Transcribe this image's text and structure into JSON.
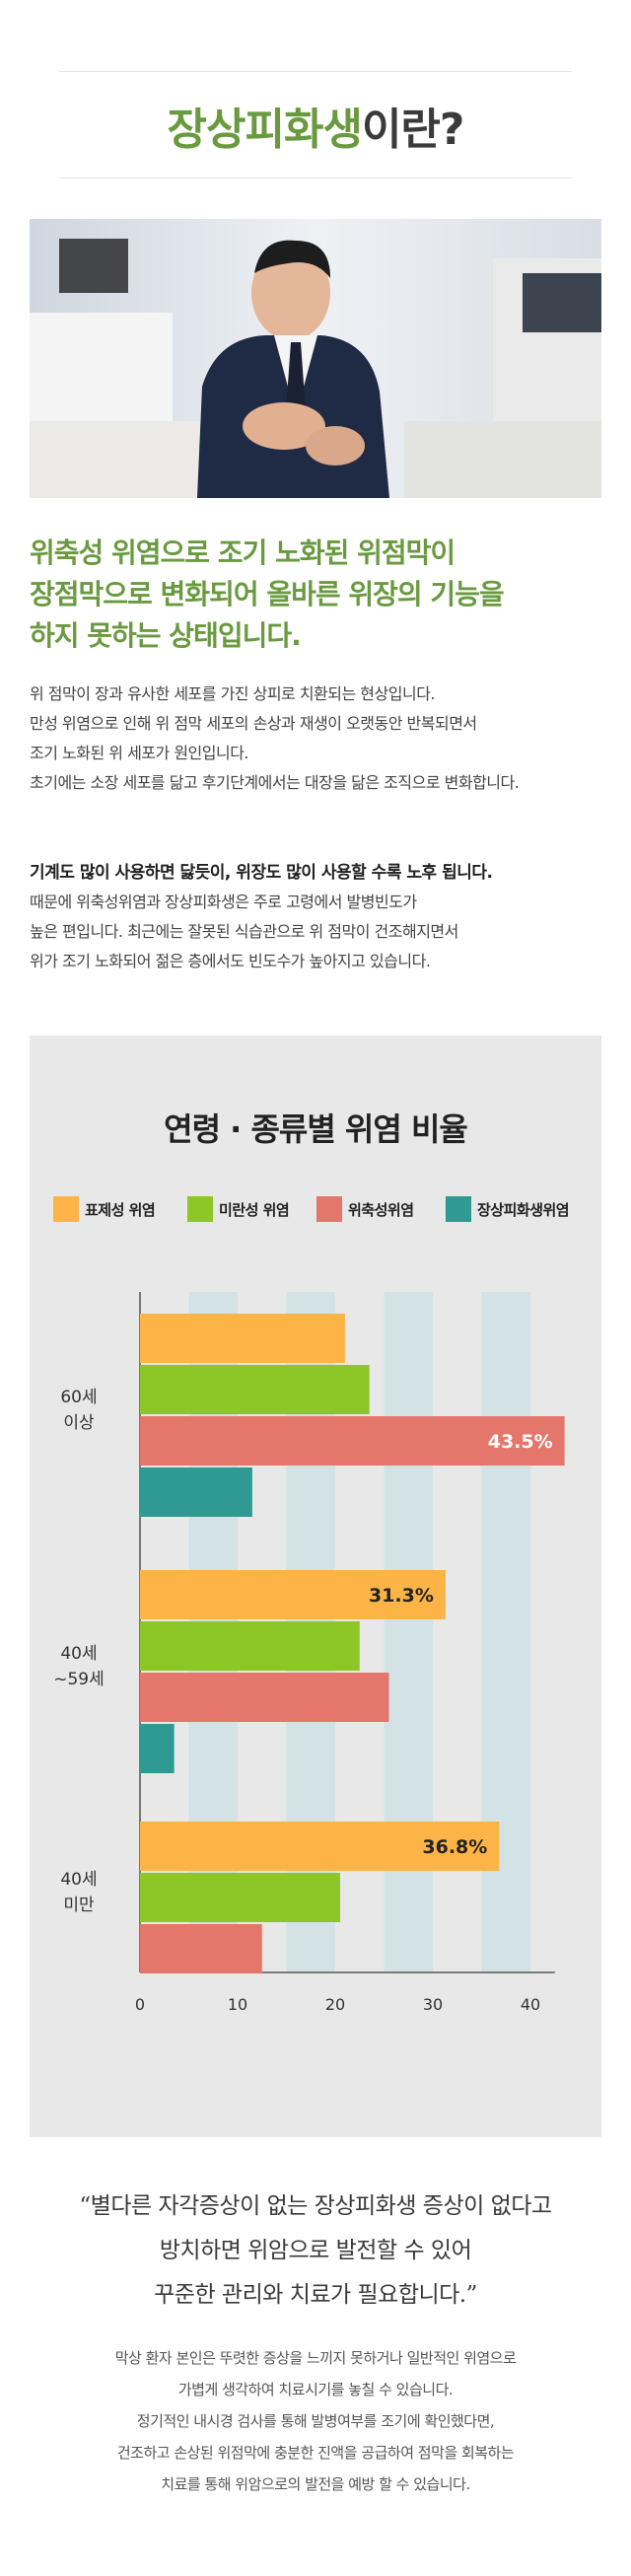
{
  "title": {
    "part1": "장상피화생",
    "part2": "이란?"
  },
  "headline": [
    "위축성 위염으로 조기 노화된 위점막이",
    "장점막으로 변화되어 올바른 위장의 기능을",
    "하지 못하는 상태입니다."
  ],
  "para1": [
    "위 점막이 장과 유사한 세포를 가진 상피로 치환되는 현상입니다.",
    "만성 위염으로 인해 위 점막 세포의 손상과 재생이 오랫동안 반복되면서",
    "조기 노화된 위 세포가 원인입니다.",
    "초기에는 소장 세포를 닮고 후기단계에서는 대장을 닮은 조직으로 변화합니다."
  ],
  "para2": {
    "strong": "기계도 많이 사용하면 닳듯이, 위장도 많이 사용할 수록 노후 됩니다.",
    "lines": [
      "때문에 위축성위염과 장상피화생은 주로 고령에서 발병빈도가",
      "높은 편입니다.  최근에는 잘못된 식습관으로 위 점막이 건조해지면서",
      "위가 조기 노화되어 젊은 층에서도 빈도수가 높아지고 있습니다."
    ]
  },
  "colors": {
    "accent": "#6a9a3f",
    "panel_bg": "#e8e8e8",
    "stripe": "#d3e2e4"
  },
  "chart_data": {
    "type": "bar",
    "orientation": "horizontal",
    "title": "연령 · 종류별 위염 비율",
    "categories": [
      [
        "60세",
        "이상"
      ],
      [
        "40세",
        "~59세"
      ],
      [
        "40세",
        "미만"
      ]
    ],
    "series": [
      {
        "name": "표제성 위염",
        "color": "#fdb447",
        "values": [
          21,
          31.3,
          36.8
        ]
      },
      {
        "name": "미란성 위염",
        "color": "#8cc727",
        "values": [
          23.5,
          22.5,
          20.5
        ]
      },
      {
        "name": "위축성위염",
        "color": "#e5766b",
        "values": [
          43.5,
          25.5,
          12.5
        ]
      },
      {
        "name": "장상피화생위염",
        "color": "#2e9a92",
        "values": [
          11.5,
          3.5,
          null
        ]
      }
    ],
    "data_labels": [
      {
        "category": 0,
        "series": 2,
        "text": "43.5%"
      },
      {
        "category": 1,
        "series": 0,
        "text": "31.3%"
      },
      {
        "category": 2,
        "series": 0,
        "text": "36.8%"
      }
    ],
    "xticks": [
      "0",
      "10",
      "20",
      "30",
      "40"
    ],
    "xlim": [
      0,
      42.5
    ],
    "grid": "alternating vertical bands",
    "legend": "top"
  },
  "quote": [
    "“별다른 자각증상이 없는 장상피화생 증상이 없다고",
    "방치하면 위암으로 발전할 수 있어",
    "꾸준한 관리와 치료가 필요합니다.”"
  ],
  "note": [
    "막상 환자 본인은 뚜렷한 증상을 느끼지 못하거나 일반적인 위염으로",
    "가볍게 생각하여 치료시기를 놓칠 수 있습니다.",
    "정기적인 내시경 검사를 통해 발병여부를 조기에 확인했다면,",
    "건조하고 손상된 위점막에 충분한 진액을 공급하여 점막을 회복하는",
    "치료를 통해 위암으로의 발전을 예방 할 수 있습니다."
  ]
}
